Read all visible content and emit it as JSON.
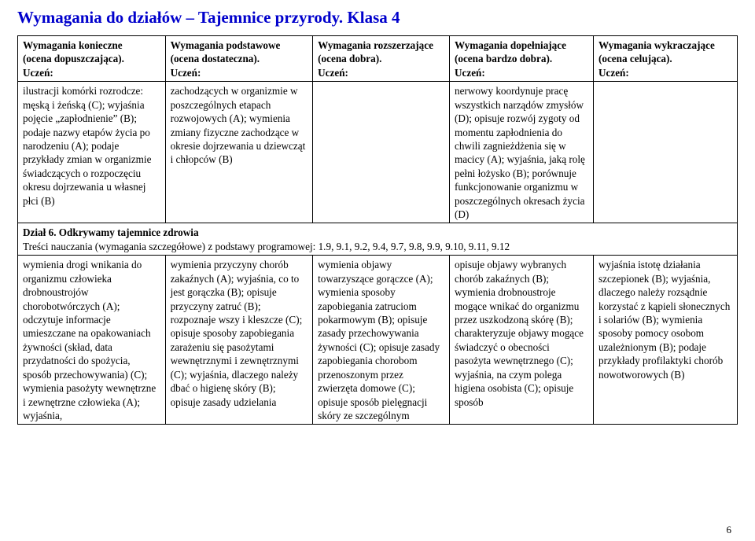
{
  "title": "Wymagania do działów – Tajemnice przyrody. Klasa 4",
  "columns": [
    {
      "line1": "Wymagania konieczne",
      "line2": "(ocena dopuszczająca).",
      "line3": "Uczeń:"
    },
    {
      "line1": "Wymagania podstawowe",
      "line2": "(ocena dostateczna).",
      "line3": "Uczeń:"
    },
    {
      "line1": "Wymagania rozszerzające",
      "line2": "(ocena dobra).",
      "line3": "Uczeń:"
    },
    {
      "line1": "Wymagania dopełniające",
      "line2": "(ocena bardzo dobra).",
      "line3": "Uczeń:"
    },
    {
      "line1": "Wymagania wykraczające",
      "line2": "(ocena celująca).",
      "line3": "Uczeń:"
    }
  ],
  "row1": {
    "c1": "ilustracji komórki rozrodcze: męską i żeńską (C); wyjaśnia pojęcie „zapłodnienie” (B); podaje nazwy etapów życia po narodzeniu (A); podaje przykłady zmian w organizmie świadczących o rozpoczęciu okresu dojrzewania u własnej płci (B)",
    "c2": "zachodzących w organizmie w poszczególnych etapach rozwojowych (A); wymienia zmiany fizyczne zachodzące w okresie dojrzewania u dziewcząt i chłopców (B)",
    "c3": "",
    "c4": "nerwowy koordynuje pracę wszystkich narządów zmysłów (D); opisuje rozwój zygoty od momentu zapłodnienia do chwili zagnieżdżenia się w macicy (A); wyjaśnia, jaką rolę pełni łożysko (B); porównuje funkcjonowanie organizmu w poszczególnych okresach życia (D)",
    "c5": ""
  },
  "section": {
    "title": "Dział 6. Odkrywamy tajemnice zdrowia",
    "sub": "Treści nauczania (wymagania szczegółowe) z podstawy programowej: 1.9, 9.1, 9.2, 9.4, 9.7, 9.8, 9.9, 9.10, 9.11, 9.12"
  },
  "row2": {
    "c1": "wymienia drogi wnikania do organizmu człowieka drobnoustrojów chorobotwórczych (A); odczytuje informacje umieszczane na opakowaniach żywności (skład, data przydatności do spożycia, sposób przechowywania) (C); wymienia pasożyty wewnętrzne i zewnętrzne człowieka (A); wyjaśnia,",
    "c2": "wymienia przyczyny chorób zakaźnych (A); wyjaśnia, co to jest gorączka (B); opisuje przyczyny zatruć (B); rozpoznaje wszy i kleszcze (C); opisuje sposoby zapobiegania zarażeniu się pasożytami wewnętrznymi i zewnętrznymi (C); wyjaśnia, dlaczego należy dbać o higienę skóry (B); opisuje zasady udzielania",
    "c3": "wymienia objawy towarzyszące gorączce (A); wymienia sposoby zapobiegania zatruciom pokarmowym (B); opisuje zasady przechowywania żywności (C); opisuje zasady zapobiegania chorobom przenoszonym przez zwierzęta domowe (C); opisuje sposób pielęgnacji skóry ze szczególnym",
    "c4": "opisuje objawy wybranych chorób zakaźnych (B); wymienia drobnoustroje mogące wnikać do organizmu przez uszkodzoną skórę (B); charakteryzuje objawy mogące świadczyć o obecności pasożyta wewnętrznego (C); wyjaśnia, na czym polega higiena osobista (C); opisuje sposób",
    "c5": "wyjaśnia istotę działania szczepionek (B); wyjaśnia, dlaczego należy rozsądnie korzystać z kąpieli słonecznych i solariów (B); wymienia sposoby pomocy osobom uzależnionym (B); podaje przykłady profilaktyki chorób nowotworowych (B)"
  },
  "pagenum": "6"
}
